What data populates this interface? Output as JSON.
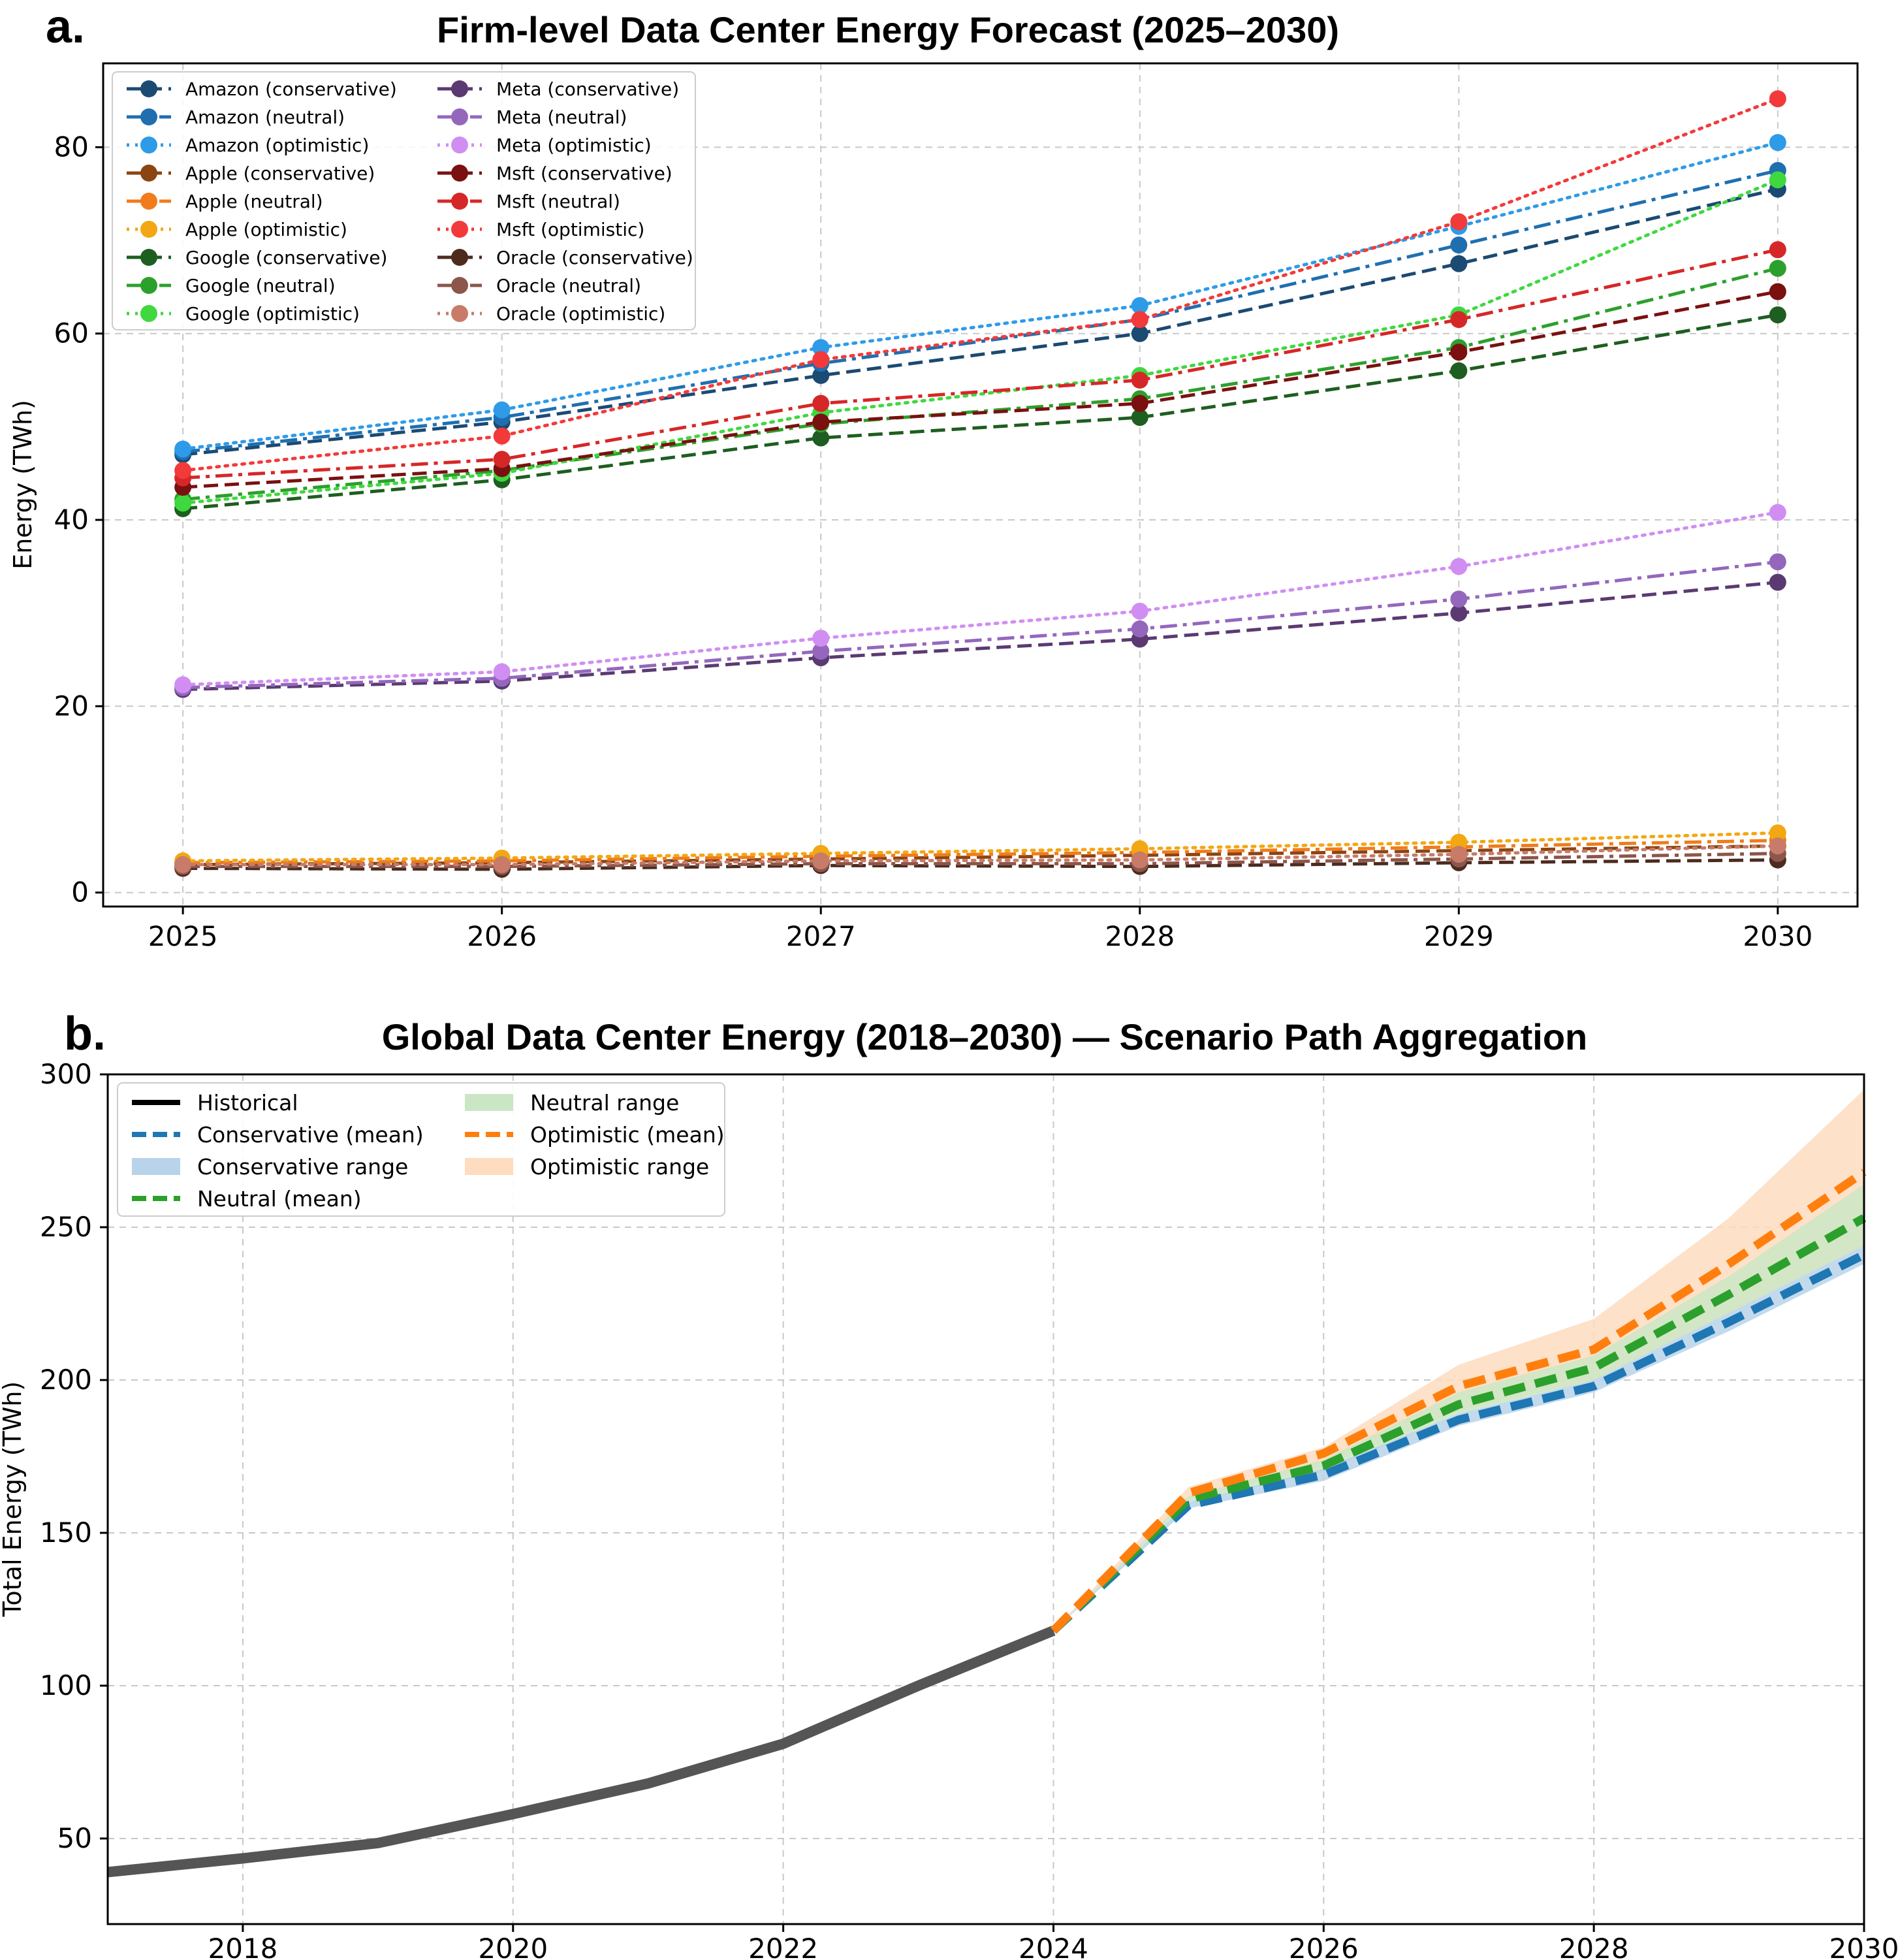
{
  "chart_data": [
    {
      "panel": "a.",
      "type": "line",
      "title": "Firm-level Data Center Energy Forecast (2025–2030)",
      "xlabel": "",
      "ylabel": "Energy (TWh)",
      "x": [
        2025,
        2026,
        2027,
        2028,
        2029,
        2030
      ],
      "xlim": [
        2024.75,
        2030.25
      ],
      "ylim": [
        -1.5,
        89
      ],
      "yticks": [
        0,
        20,
        40,
        60,
        80
      ],
      "grid": true,
      "legend": "upper-left",
      "legend_columns": 2,
      "series": [
        {
          "name": "Amazon (conservative)",
          "color": "#1b4a72",
          "style": "solid-dash",
          "values": [
            47.0,
            50.5,
            55.5,
            60.0,
            67.5,
            75.5
          ]
        },
        {
          "name": "Amazon (neutral)",
          "color": "#1f6fb0",
          "style": "dashdot",
          "values": [
            47.3,
            51.0,
            56.8,
            61.5,
            69.5,
            77.5
          ]
        },
        {
          "name": "Amazon (optimistic)",
          "color": "#2e9be8",
          "style": "dotted",
          "values": [
            47.6,
            51.8,
            58.5,
            63.0,
            71.5,
            80.5
          ]
        },
        {
          "name": "Apple (conservative)",
          "color": "#8b4513",
          "style": "solid-dash",
          "values": [
            3.0,
            3.2,
            3.6,
            4.0,
            4.5,
            5.0
          ]
        },
        {
          "name": "Apple (neutral)",
          "color": "#f07c1c",
          "style": "dashdot",
          "values": [
            3.2,
            3.4,
            3.9,
            4.3,
            4.9,
            5.6
          ]
        },
        {
          "name": "Apple (optimistic)",
          "color": "#f3a712",
          "style": "dotted",
          "values": [
            3.4,
            3.7,
            4.2,
            4.7,
            5.4,
            6.4
          ]
        },
        {
          "name": "Google (conservative)",
          "color": "#1e5e20",
          "style": "solid-dash",
          "values": [
            41.2,
            44.3,
            48.8,
            51.0,
            56.0,
            62.0
          ]
        },
        {
          "name": "Google (neutral)",
          "color": "#2ca02c",
          "style": "dashdot",
          "values": [
            42.2,
            45.3,
            50.3,
            53.0,
            58.5,
            67.0
          ]
        },
        {
          "name": "Google (optimistic)",
          "color": "#3fd83f",
          "style": "dotted",
          "values": [
            41.8,
            45.0,
            51.5,
            55.5,
            62.0,
            76.5
          ]
        },
        {
          "name": "Meta (conservative)",
          "color": "#5b3a72",
          "style": "solid-dash",
          "values": [
            21.8,
            22.7,
            25.2,
            27.2,
            30.0,
            33.3
          ]
        },
        {
          "name": "Meta (neutral)",
          "color": "#9467bd",
          "style": "dashdot",
          "values": [
            22.0,
            23.0,
            25.9,
            28.3,
            31.5,
            35.5
          ]
        },
        {
          "name": "Meta (optimistic)",
          "color": "#d18ef2",
          "style": "dotted",
          "values": [
            22.3,
            23.7,
            27.3,
            30.2,
            35.0,
            40.8
          ]
        },
        {
          "name": "Msft (conservative)",
          "color": "#7a1010",
          "style": "solid-dash",
          "values": [
            43.5,
            45.5,
            50.5,
            52.5,
            58.0,
            64.5
          ]
        },
        {
          "name": "Msft (neutral)",
          "color": "#d62728",
          "style": "dashdot",
          "values": [
            44.5,
            46.5,
            52.5,
            55.0,
            61.5,
            69.0
          ]
        },
        {
          "name": "Msft (optimistic)",
          "color": "#f23a3a",
          "style": "dotted",
          "values": [
            45.3,
            49.0,
            57.2,
            61.5,
            72.0,
            85.2
          ]
        },
        {
          "name": "Oracle (conservative)",
          "color": "#4d2b1f",
          "style": "solid-dash",
          "values": [
            2.6,
            2.5,
            2.9,
            2.8,
            3.2,
            3.5
          ]
        },
        {
          "name": "Oracle (neutral)",
          "color": "#8c564b",
          "style": "dashdot",
          "values": [
            2.8,
            2.8,
            3.1,
            3.1,
            3.6,
            4.2
          ]
        },
        {
          "name": "Oracle (optimistic)",
          "color": "#c77b68",
          "style": "dotted",
          "values": [
            3.0,
            3.0,
            3.4,
            3.5,
            4.1,
            5.0
          ]
        }
      ]
    },
    {
      "panel": "b.",
      "type": "line",
      "title": "Global Data Center Energy (2018–2030) — Scenario Path Aggregation",
      "xlabel": "",
      "ylabel": "Total Energy (TWh)",
      "xlim": [
        2017,
        2030
      ],
      "ylim": [
        22,
        300
      ],
      "xticks": [
        2018,
        2020,
        2022,
        2024,
        2026,
        2028,
        2030
      ],
      "yticks": [
        50,
        100,
        150,
        200,
        250,
        300
      ],
      "grid": true,
      "legend": "upper-left",
      "legend_columns": 2,
      "historical": {
        "name": "Historical",
        "color": "#555555",
        "x": [
          2017,
          2018,
          2019,
          2020,
          2021,
          2022,
          2023,
          2024
        ],
        "values": [
          39,
          43.5,
          48.5,
          58,
          68,
          81,
          100,
          118
        ]
      },
      "scenarios": [
        {
          "name": "Conservative (mean)",
          "range_name": "Conservative range",
          "color": "#1f77b4",
          "fill": "#b9d3ea",
          "x": [
            2024,
            2025,
            2026,
            2027,
            2028,
            2029,
            2030
          ],
          "mean": [
            118,
            159,
            169,
            187,
            198,
            219,
            241
          ],
          "low": [
            118,
            158,
            167,
            185,
            196,
            216,
            238
          ],
          "high": [
            118,
            160,
            171,
            189,
            200,
            222,
            244
          ]
        },
        {
          "name": "Neutral (mean)",
          "range_name": "Neutral range",
          "color": "#2ca02c",
          "fill": "#cbe6c4",
          "x": [
            2024,
            2025,
            2026,
            2027,
            2028,
            2029,
            2030
          ],
          "mean": [
            118,
            161,
            172,
            192,
            204,
            228,
            253
          ],
          "low": [
            118,
            160,
            170,
            189,
            200,
            222,
            244
          ],
          "high": [
            118,
            162,
            174,
            196,
            208,
            234,
            264
          ]
        },
        {
          "name": "Optimistic (mean)",
          "range_name": "Optimistic range",
          "color": "#ff7f0e",
          "fill": "#fddcc0",
          "x": [
            2024,
            2025,
            2026,
            2027,
            2028,
            2029,
            2030
          ],
          "mean": [
            118,
            163,
            176,
            198,
            210,
            238,
            268
          ],
          "low": [
            118,
            161,
            172,
            190,
            200,
            222,
            244
          ],
          "high": [
            118,
            165,
            178,
            205,
            220,
            253,
            295
          ]
        }
      ]
    }
  ]
}
